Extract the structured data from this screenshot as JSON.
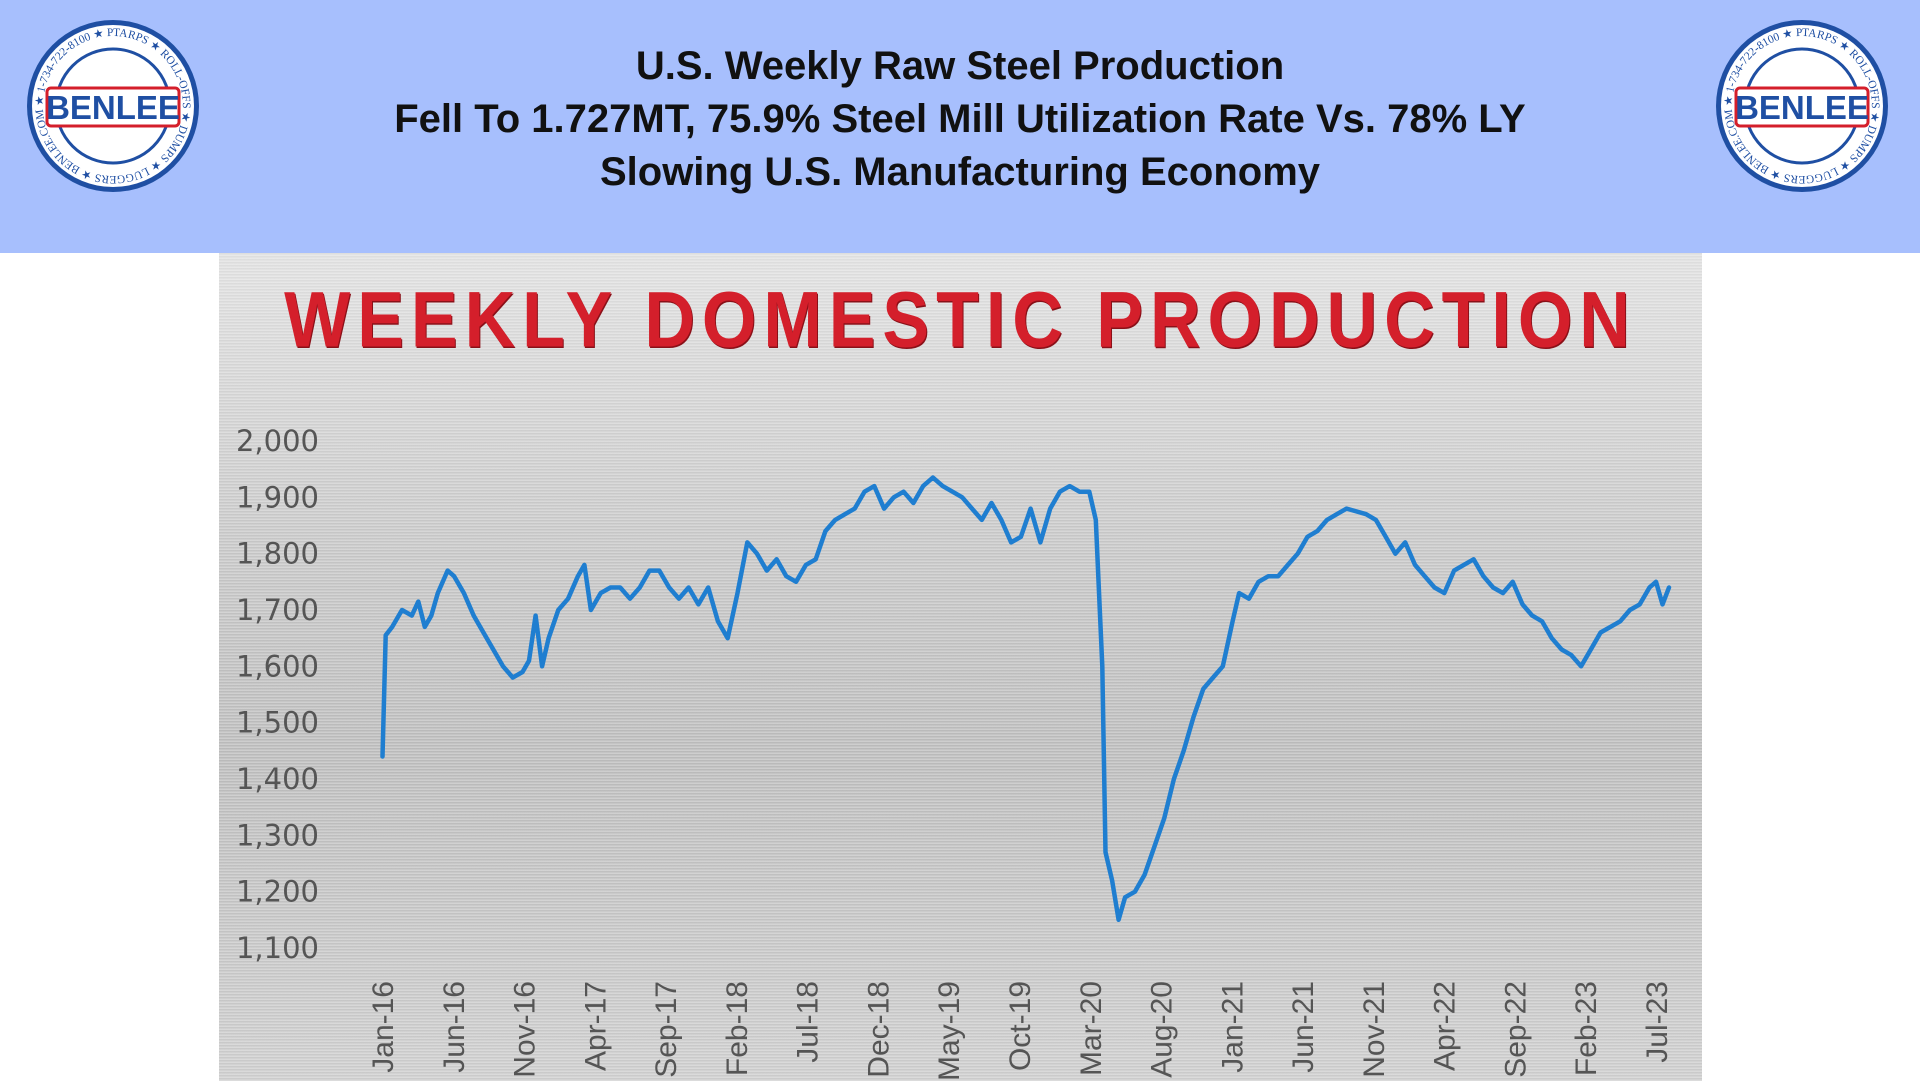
{
  "header": {
    "lines": [
      "U.S. Weekly Raw Steel Production",
      "Fell To 1.727MT, 75.9% Steel Mill Utilization Rate Vs. 78% LY",
      "Slowing U.S. Manufacturing Economy"
    ]
  },
  "logo": {
    "brand": "BENLEE",
    "ring_text": "TARPS ★ ROLL-OFFS ★ DUMPS ★ LUGGERS ★ BENLEE.COM ★ 1-734-722-8100 ★ PARTS ★",
    "colors": {
      "ring": "#ffffff",
      "brand_text": "#1f4fa3",
      "accent": "#d41f2b"
    }
  },
  "colors": {
    "header_band": "#a7bffd",
    "line": "#1f7ed0",
    "title": "#d41f2b"
  },
  "chart_data": {
    "type": "line",
    "title": "WEEKLY DOMESTIC PRODUCTION",
    "xlabel": "",
    "ylabel": "",
    "ylim": [
      1100,
      2000
    ],
    "y_ticks": [
      2000,
      1900,
      1800,
      1700,
      1600,
      1500,
      1400,
      1300,
      1200,
      1100
    ],
    "y_tick_labels": [
      "2,000",
      "1,900",
      "1,800",
      "1,700",
      "1,600",
      "1,500",
      "1,400",
      "1,300",
      "1,200",
      "1,100"
    ],
    "x_tick_labels": [
      "Jan-16",
      "Jun-16",
      "Nov-16",
      "Apr-17",
      "Sep-17",
      "Feb-18",
      "Jul-18",
      "Dec-18",
      "May-19",
      "Oct-19",
      "Mar-20",
      "Aug-20",
      "Jan-21",
      "Jun-21",
      "Nov-21",
      "Apr-22",
      "Sep-22",
      "Feb-23",
      "Jul-23"
    ],
    "x_range": [
      "2016-01",
      "2023-07"
    ],
    "grid": false,
    "legend": "none",
    "series": [
      {
        "points": [
          [
            "2016-01-02",
            1440
          ],
          [
            "2016-01-09",
            1655
          ],
          [
            "2016-01-23",
            1670
          ],
          [
            "2016-02-13",
            1700
          ],
          [
            "2016-03-05",
            1690
          ],
          [
            "2016-03-19",
            1715
          ],
          [
            "2016-04-02",
            1670
          ],
          [
            "2016-04-16",
            1690
          ],
          [
            "2016-04-30",
            1730
          ],
          [
            "2016-05-21",
            1770
          ],
          [
            "2016-06-04",
            1760
          ],
          [
            "2016-06-25",
            1730
          ],
          [
            "2016-07-16",
            1690
          ],
          [
            "2016-08-06",
            1660
          ],
          [
            "2016-08-27",
            1630
          ],
          [
            "2016-09-17",
            1600
          ],
          [
            "2016-10-08",
            1580
          ],
          [
            "2016-10-29",
            1590
          ],
          [
            "2016-11-12",
            1610
          ],
          [
            "2016-11-26",
            1690
          ],
          [
            "2016-12-10",
            1600
          ],
          [
            "2016-12-24",
            1650
          ],
          [
            "2017-01-14",
            1700
          ],
          [
            "2017-02-04",
            1720
          ],
          [
            "2017-02-25",
            1760
          ],
          [
            "2017-03-11",
            1780
          ],
          [
            "2017-03-25",
            1700
          ],
          [
            "2017-04-15",
            1730
          ],
          [
            "2017-05-06",
            1740
          ],
          [
            "2017-05-27",
            1740
          ],
          [
            "2017-06-17",
            1720
          ],
          [
            "2017-07-08",
            1740
          ],
          [
            "2017-07-29",
            1770
          ],
          [
            "2017-08-19",
            1770
          ],
          [
            "2017-09-09",
            1740
          ],
          [
            "2017-09-30",
            1720
          ],
          [
            "2017-10-21",
            1740
          ],
          [
            "2017-11-11",
            1710
          ],
          [
            "2017-12-02",
            1740
          ],
          [
            "2017-12-23",
            1680
          ],
          [
            "2018-01-13",
            1650
          ],
          [
            "2018-02-03",
            1730
          ],
          [
            "2018-02-24",
            1820
          ],
          [
            "2018-03-17",
            1800
          ],
          [
            "2018-04-07",
            1770
          ],
          [
            "2018-04-28",
            1790
          ],
          [
            "2018-05-19",
            1760
          ],
          [
            "2018-06-09",
            1750
          ],
          [
            "2018-06-30",
            1780
          ],
          [
            "2018-07-21",
            1790
          ],
          [
            "2018-08-11",
            1840
          ],
          [
            "2018-09-01",
            1860
          ],
          [
            "2018-09-22",
            1870
          ],
          [
            "2018-10-13",
            1880
          ],
          [
            "2018-11-03",
            1910
          ],
          [
            "2018-11-24",
            1920
          ],
          [
            "2018-12-15",
            1880
          ],
          [
            "2019-01-05",
            1900
          ],
          [
            "2019-01-26",
            1910
          ],
          [
            "2019-02-16",
            1890
          ],
          [
            "2019-03-09",
            1920
          ],
          [
            "2019-03-30",
            1935
          ],
          [
            "2019-04-20",
            1920
          ],
          [
            "2019-05-11",
            1910
          ],
          [
            "2019-06-01",
            1900
          ],
          [
            "2019-06-22",
            1880
          ],
          [
            "2019-07-13",
            1860
          ],
          [
            "2019-08-03",
            1890
          ],
          [
            "2019-08-24",
            1860
          ],
          [
            "2019-09-14",
            1820
          ],
          [
            "2019-10-05",
            1830
          ],
          [
            "2019-10-26",
            1880
          ],
          [
            "2019-11-16",
            1820
          ],
          [
            "2019-12-07",
            1880
          ],
          [
            "2019-12-28",
            1910
          ],
          [
            "2020-01-18",
            1920
          ],
          [
            "2020-02-08",
            1910
          ],
          [
            "2020-02-29",
            1910
          ],
          [
            "2020-03-14",
            1860
          ],
          [
            "2020-03-28",
            1600
          ],
          [
            "2020-04-04",
            1270
          ],
          [
            "2020-04-18",
            1220
          ],
          [
            "2020-05-02",
            1150
          ],
          [
            "2020-05-16",
            1190
          ],
          [
            "2020-06-06",
            1200
          ],
          [
            "2020-06-27",
            1230
          ],
          [
            "2020-07-18",
            1280
          ],
          [
            "2020-08-08",
            1330
          ],
          [
            "2020-08-29",
            1400
          ],
          [
            "2020-09-19",
            1450
          ],
          [
            "2020-10-10",
            1510
          ],
          [
            "2020-10-31",
            1560
          ],
          [
            "2020-11-21",
            1580
          ],
          [
            "2020-12-12",
            1600
          ],
          [
            "2021-01-02",
            1680
          ],
          [
            "2021-01-16",
            1730
          ],
          [
            "2021-02-06",
            1720
          ],
          [
            "2021-02-27",
            1750
          ],
          [
            "2021-03-20",
            1760
          ],
          [
            "2021-04-10",
            1760
          ],
          [
            "2021-05-01",
            1780
          ],
          [
            "2021-05-22",
            1800
          ],
          [
            "2021-06-12",
            1830
          ],
          [
            "2021-07-03",
            1840
          ],
          [
            "2021-07-24",
            1860
          ],
          [
            "2021-08-14",
            1870
          ],
          [
            "2021-09-04",
            1880
          ],
          [
            "2021-09-25",
            1875
          ],
          [
            "2021-10-16",
            1870
          ],
          [
            "2021-11-06",
            1860
          ],
          [
            "2021-11-27",
            1830
          ],
          [
            "2021-12-18",
            1800
          ],
          [
            "2022-01-08",
            1820
          ],
          [
            "2022-01-29",
            1780
          ],
          [
            "2022-02-19",
            1760
          ],
          [
            "2022-03-12",
            1740
          ],
          [
            "2022-04-02",
            1730
          ],
          [
            "2022-04-23",
            1770
          ],
          [
            "2022-05-14",
            1780
          ],
          [
            "2022-06-04",
            1790
          ],
          [
            "2022-06-25",
            1760
          ],
          [
            "2022-07-16",
            1740
          ],
          [
            "2022-08-06",
            1730
          ],
          [
            "2022-08-27",
            1750
          ],
          [
            "2022-09-17",
            1710
          ],
          [
            "2022-10-08",
            1690
          ],
          [
            "2022-10-29",
            1680
          ],
          [
            "2022-11-19",
            1650
          ],
          [
            "2022-12-10",
            1630
          ],
          [
            "2022-12-31",
            1620
          ],
          [
            "2023-01-21",
            1600
          ],
          [
            "2023-02-11",
            1630
          ],
          [
            "2023-03-04",
            1660
          ],
          [
            "2023-03-25",
            1670
          ],
          [
            "2023-04-15",
            1680
          ],
          [
            "2023-05-06",
            1700
          ],
          [
            "2023-05-27",
            1710
          ],
          [
            "2023-06-17",
            1740
          ],
          [
            "2023-07-01",
            1750
          ],
          [
            "2023-07-15",
            1710
          ],
          [
            "2023-07-29",
            1740
          ]
        ]
      }
    ]
  }
}
